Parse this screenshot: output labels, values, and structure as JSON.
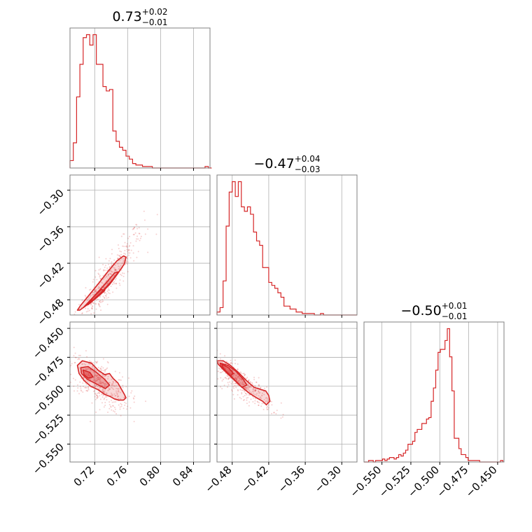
{
  "chart_data": {
    "type": "corner",
    "color": "#d62728",
    "params": 3,
    "titles": [
      {
        "median": "0.73",
        "plus": "+0.02",
        "minus": "−0.01"
      },
      {
        "median": "−0.47",
        "plus": "+0.04",
        "minus": "−0.03"
      },
      {
        "median": "−0.50",
        "plus": "+0.01",
        "minus": "−0.01"
      }
    ],
    "axes": [
      {
        "range": [
          0.69,
          0.86
        ],
        "ticks": [
          0.72,
          0.76,
          0.8,
          0.84
        ],
        "tick_labels": [
          "0.72",
          "0.76",
          "0.80",
          "0.84"
        ]
      },
      {
        "range": [
          -0.505,
          -0.275
        ],
        "ticks": [
          -0.48,
          -0.42,
          -0.36,
          -0.3
        ],
        "tick_labels": [
          "−0.48",
          "−0.42",
          "−0.36",
          "−0.30"
        ]
      },
      {
        "range": [
          -0.5655,
          -0.4445
        ],
        "ticks": [
          -0.55,
          -0.525,
          -0.5,
          -0.475,
          -0.45
        ],
        "tick_labels": [
          "−0.550",
          "−0.525",
          "−0.500",
          "−0.475",
          "−0.450"
        ]
      }
    ],
    "grid": true,
    "hist1d": [
      {
        "param": 0,
        "edges": [
          0.69,
          0.694,
          0.698,
          0.702,
          0.706,
          0.71,
          0.714,
          0.718,
          0.722,
          0.726,
          0.73,
          0.734,
          0.738,
          0.742,
          0.746,
          0.75,
          0.754,
          0.758,
          0.762,
          0.766,
          0.77,
          0.774,
          0.778,
          0.782,
          0.786,
          0.79,
          0.794,
          0.798,
          0.802,
          0.806,
          0.81,
          0.814,
          0.818,
          0.822,
          0.826,
          0.83,
          0.834,
          0.838,
          0.842,
          0.846,
          0.85,
          0.854,
          0.858,
          0.862
        ],
        "counts": [
          5,
          17,
          48,
          70,
          88,
          90,
          83,
          90,
          70,
          70,
          55,
          52,
          53,
          25,
          18,
          14,
          12,
          8,
          6,
          3,
          2,
          2,
          1,
          1,
          1,
          0,
          0,
          0,
          0,
          0,
          0,
          0,
          0,
          0,
          0,
          0,
          0,
          0,
          0,
          0,
          0,
          1,
          0
        ]
      },
      {
        "param": 1,
        "edges": [
          -0.505,
          -0.5,
          -0.495,
          -0.49,
          -0.485,
          -0.48,
          -0.475,
          -0.47,
          -0.465,
          -0.46,
          -0.455,
          -0.45,
          -0.445,
          -0.44,
          -0.435,
          -0.43,
          -0.425,
          -0.42,
          -0.415,
          -0.41,
          -0.405,
          -0.4,
          -0.395,
          -0.39,
          -0.385,
          -0.38,
          -0.375,
          -0.37,
          -0.365,
          -0.36,
          -0.355,
          -0.35,
          -0.345,
          -0.34,
          -0.335,
          -0.33,
          -0.325,
          -0.32,
          -0.315,
          -0.31,
          -0.305,
          -0.3,
          -0.295,
          -0.29,
          -0.285,
          -0.28,
          -0.275
        ],
        "counts": [
          2,
          5,
          23,
          60,
          83,
          90,
          80,
          90,
          73,
          70,
          73,
          68,
          56,
          50,
          47,
          32,
          32,
          22,
          20,
          18,
          15,
          12,
          6,
          6,
          4,
          4,
          2,
          2,
          1,
          1,
          1,
          1,
          0,
          0,
          1,
          0,
          0,
          0,
          0,
          0,
          0,
          0,
          0,
          0,
          0,
          0
        ]
      },
      {
        "param": 2,
        "edges": [
          -0.5655,
          -0.5635,
          -0.5615,
          -0.5595,
          -0.5575,
          -0.5555,
          -0.5535,
          -0.5515,
          -0.5495,
          -0.5475,
          -0.5455,
          -0.5435,
          -0.5415,
          -0.5395,
          -0.5375,
          -0.5355,
          -0.5335,
          -0.5315,
          -0.5295,
          -0.5275,
          -0.5255,
          -0.5235,
          -0.5215,
          -0.5195,
          -0.5175,
          -0.5155,
          -0.5135,
          -0.5115,
          -0.5095,
          -0.5075,
          -0.5055,
          -0.5035,
          -0.5015,
          -0.4995,
          -0.4975,
          -0.4955,
          -0.4935,
          -0.4915,
          -0.4895,
          -0.4875,
          -0.4855,
          -0.4835,
          -0.4815,
          -0.4795,
          -0.4775,
          -0.4755,
          -0.4735,
          -0.4715,
          -0.4695,
          -0.4675,
          -0.4655,
          -0.4635,
          -0.4615,
          -0.4595,
          -0.4575,
          -0.4555,
          -0.4535,
          -0.4515,
          -0.4495,
          -0.4475,
          -0.4455
        ],
        "counts": [
          0,
          0,
          1,
          1,
          0,
          1,
          1,
          1,
          2,
          1,
          2,
          3,
          3,
          2,
          3,
          5,
          4,
          6,
          8,
          12,
          12,
          14,
          20,
          22,
          22,
          26,
          26,
          29,
          30,
          41,
          50,
          62,
          74,
          76,
          76,
          82,
          90,
          71,
          48,
          16,
          16,
          9,
          5,
          5,
          3,
          1,
          1,
          1,
          1,
          1,
          0,
          0,
          0,
          0,
          0,
          0,
          0,
          0,
          0,
          1
        ]
      }
    ],
    "hist2d": [
      {
        "x": 0,
        "y": 1,
        "contours": [
          [
            [
              0.702,
              -0.497
            ],
            [
              0.712,
              -0.487
            ],
            [
              0.724,
              -0.474
            ],
            [
              0.738,
              -0.455
            ],
            [
              0.748,
              -0.437
            ],
            [
              0.756,
              -0.421
            ],
            [
              0.758,
              -0.41
            ],
            [
              0.755,
              -0.408
            ],
            [
              0.747,
              -0.416
            ],
            [
              0.737,
              -0.432
            ],
            [
              0.726,
              -0.451
            ],
            [
              0.714,
              -0.471
            ],
            [
              0.703,
              -0.489
            ],
            [
              0.699,
              -0.497
            ]
          ],
          [
            [
              0.706,
              -0.493
            ],
            [
              0.716,
              -0.483
            ],
            [
              0.728,
              -0.468
            ],
            [
              0.74,
              -0.45
            ],
            [
              0.749,
              -0.434
            ],
            [
              0.744,
              -0.436
            ],
            [
              0.734,
              -0.452
            ],
            [
              0.722,
              -0.47
            ],
            [
              0.711,
              -0.486
            ]
          ],
          [
            [
              0.712,
              -0.488
            ],
            [
              0.722,
              -0.477
            ],
            [
              0.732,
              -0.465
            ],
            [
              0.728,
              -0.463
            ],
            [
              0.718,
              -0.476
            ]
          ]
        ],
        "scatter_center": [
          0.735,
          -0.45
        ],
        "scatter_spread": [
          0.022,
          0.045
        ],
        "scatter_correlation": 0.92
      },
      {
        "x": 0,
        "y": 2,
        "contours": [
          [
            [
              0.699,
              -0.482
            ],
            [
              0.705,
              -0.478
            ],
            [
              0.716,
              -0.48
            ],
            [
              0.724,
              -0.486
            ],
            [
              0.732,
              -0.49
            ],
            [
              0.738,
              -0.489
            ],
            [
              0.742,
              -0.493
            ],
            [
              0.748,
              -0.497
            ],
            [
              0.752,
              -0.502
            ],
            [
              0.756,
              -0.507
            ],
            [
              0.758,
              -0.51
            ],
            [
              0.755,
              -0.512
            ],
            [
              0.749,
              -0.512
            ],
            [
              0.744,
              -0.511
            ],
            [
              0.739,
              -0.509
            ],
            [
              0.732,
              -0.507
            ],
            [
              0.724,
              -0.503
            ],
            [
              0.715,
              -0.5
            ],
            [
              0.707,
              -0.495
            ],
            [
              0.701,
              -0.489
            ]
          ],
          [
            [
              0.703,
              -0.484
            ],
            [
              0.712,
              -0.483
            ],
            [
              0.722,
              -0.488
            ],
            [
              0.732,
              -0.494
            ],
            [
              0.738,
              -0.499
            ],
            [
              0.733,
              -0.502
            ],
            [
              0.722,
              -0.498
            ],
            [
              0.711,
              -0.494
            ],
            [
              0.704,
              -0.489
            ]
          ],
          [
            [
              0.706,
              -0.486
            ],
            [
              0.714,
              -0.488
            ],
            [
              0.718,
              -0.492
            ],
            [
              0.712,
              -0.493
            ],
            [
              0.707,
              -0.49
            ]
          ]
        ],
        "scatter_center": [
          0.725,
          -0.497
        ],
        "scatter_spread": [
          0.018,
          0.012
        ],
        "scatter_correlation": -0.62
      },
      {
        "x": 1,
        "y": 2,
        "contours": [
          [
            [
              -0.505,
              -0.478
            ],
            [
              -0.495,
              -0.478
            ],
            [
              -0.483,
              -0.482
            ],
            [
              -0.47,
              -0.488
            ],
            [
              -0.457,
              -0.495
            ],
            [
              -0.444,
              -0.501
            ],
            [
              -0.432,
              -0.503
            ],
            [
              -0.425,
              -0.504
            ],
            [
              -0.42,
              -0.508
            ],
            [
              -0.418,
              -0.513
            ],
            [
              -0.424,
              -0.516
            ],
            [
              -0.43,
              -0.513
            ],
            [
              -0.44,
              -0.51
            ],
            [
              -0.452,
              -0.506
            ],
            [
              -0.466,
              -0.5
            ],
            [
              -0.48,
              -0.493
            ],
            [
              -0.494,
              -0.486
            ],
            [
              -0.503,
              -0.481
            ]
          ],
          [
            [
              -0.5,
              -0.48
            ],
            [
              -0.487,
              -0.482
            ],
            [
              -0.474,
              -0.487
            ],
            [
              -0.462,
              -0.494
            ],
            [
              -0.456,
              -0.499
            ],
            [
              -0.464,
              -0.501
            ],
            [
              -0.477,
              -0.494
            ],
            [
              -0.49,
              -0.487
            ],
            [
              -0.498,
              -0.483
            ]
          ],
          [
            [
              -0.497,
              -0.481
            ],
            [
              -0.486,
              -0.484
            ],
            [
              -0.478,
              -0.489
            ],
            [
              -0.483,
              -0.491
            ],
            [
              -0.494,
              -0.485
            ]
          ]
        ],
        "scatter_center": [
          -0.465,
          -0.497
        ],
        "scatter_spread": [
          0.025,
          0.011
        ],
        "scatter_correlation": -0.85
      }
    ]
  }
}
